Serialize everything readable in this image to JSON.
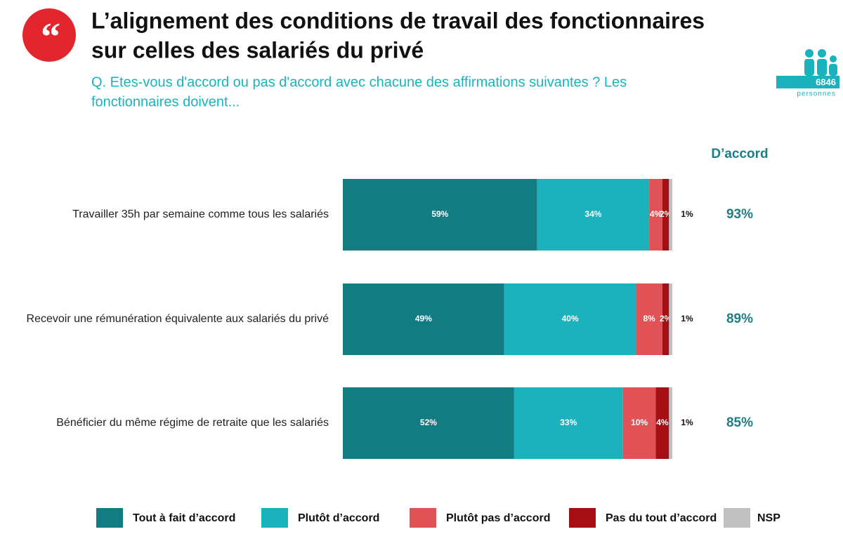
{
  "header": {
    "title_line1": "L’alignement des conditions de travail des fonctionnaires",
    "title_line2": "sur celles des salariés du privé",
    "subtitle_line1": "Q. Etes-vous d'accord ou pas d'accord avec chacune des affirmations suivantes ? Les",
    "subtitle_line2": "fonctionnaires doivent...",
    "badge_number": "6846",
    "badge_text": "personnes"
  },
  "chart_data": {
    "type": "stacked_barh",
    "categories": [
      "Travailler 35h par semaine comme tous les salariés",
      "Recevoir une rémunération équivalente aux salariés du privé",
      "Bénéficier du même régime de retraite que les salariés"
    ],
    "xlim": [
      0,
      100
    ],
    "series": [
      {
        "name": "Tout à fait d’accord",
        "color": "#137c83",
        "values": [
          59,
          49,
          52
        ],
        "value_labels": [
          "59%",
          "49%",
          "52%"
        ]
      },
      {
        "name": "Plutôt d’accord",
        "color": "#1ab3bd",
        "values": [
          34,
          40,
          33
        ],
        "value_labels": [
          "34%",
          "40%",
          "33%"
        ]
      },
      {
        "name": "Plutôt pas d’accord",
        "color": "#e05255",
        "values": [
          4,
          8,
          10
        ],
        "value_labels": [
          "4%",
          "8%",
          "10%"
        ]
      },
      {
        "name": "Pas du tout d’accord",
        "color": "#a30f12",
        "values": [
          2,
          2,
          4
        ],
        "value_labels": [
          "2%",
          "2%",
          "4%"
        ]
      },
      {
        "name": "NSP",
        "color": "#c0c0c0",
        "values": [
          1,
          1,
          1
        ],
        "value_labels": [
          "1%",
          "1%",
          "1%"
        ]
      }
    ],
    "agree_header": "D’accord",
    "agree_values": [
      93,
      89,
      85
    ],
    "agree_labels": [
      "93%",
      "89%",
      "85%"
    ]
  }
}
